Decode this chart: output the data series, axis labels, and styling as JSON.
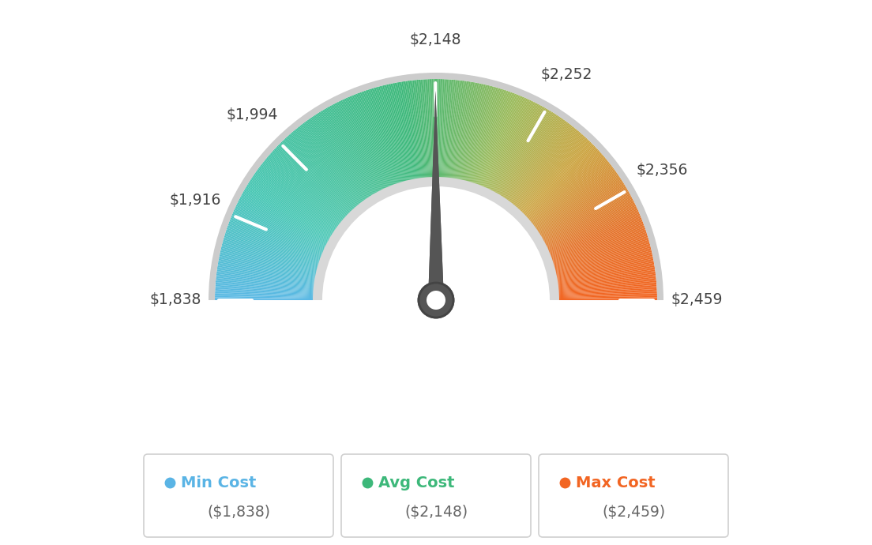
{
  "min_val": 1838,
  "avg_val": 2148,
  "max_val": 2459,
  "tick_labels": [
    "$1,838",
    "$1,916",
    "$1,994",
    "$2,148",
    "$2,252",
    "$2,356",
    "$2,459"
  ],
  "tick_values": [
    1838,
    1916,
    1994,
    2148,
    2252,
    2356,
    2459
  ],
  "bg_color": "#ffffff",
  "color_stops": [
    [
      0.0,
      [
        0.353,
        0.722,
        0.898
      ]
    ],
    [
      0.17,
      [
        0.271,
        0.776,
        0.702
      ]
    ],
    [
      0.45,
      [
        0.239,
        0.722,
        0.478
      ]
    ],
    [
      0.62,
      [
        0.608,
        0.729,
        0.349
      ]
    ],
    [
      0.75,
      [
        0.796,
        0.639,
        0.243
      ]
    ],
    [
      0.88,
      [
        0.894,
        0.447,
        0.157
      ]
    ],
    [
      1.0,
      [
        0.949,
        0.396,
        0.133
      ]
    ]
  ],
  "outer_border_color": "#cccccc",
  "inner_ring_color": "#d8d8d8",
  "needle_color": "#555555",
  "legend_items": [
    {
      "label": "Min Cost",
      "value": "($1,838)",
      "color": "#5ab4e5"
    },
    {
      "label": "Avg Cost",
      "value": "($2,148)",
      "color": "#3db87a"
    },
    {
      "label": "Max Cost",
      "value": "($2,459)",
      "color": "#f26522"
    }
  ]
}
